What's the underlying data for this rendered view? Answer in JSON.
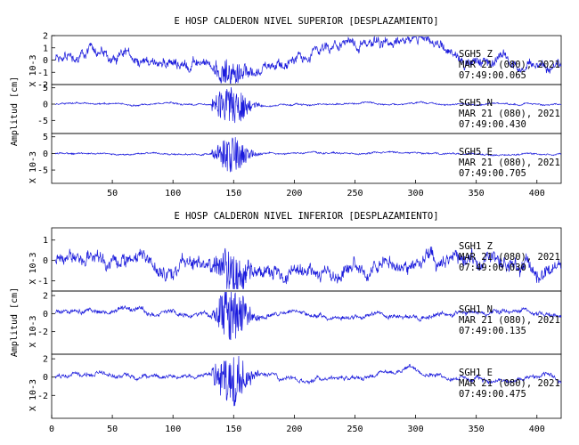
{
  "chart_data": [
    {
      "type": "line",
      "title": "E HOSP CALDERON NIVEL SUPERIOR [DESPLAZAMIENTO]",
      "ylabel": "Amplitud [cm]",
      "xlim": [
        0,
        420
      ],
      "xticks": [
        "50",
        "100",
        "150",
        "200",
        "250",
        "300",
        "350",
        "400"
      ],
      "channels": [
        {
          "name": "SGH5 Z",
          "date": "MAR 21 (080), 2021",
          "time": "07:49:00.065",
          "scale_label": "X 10-3",
          "ylim": [
            -2,
            2
          ],
          "yticks": [
            "2",
            "1",
            "0",
            "-1",
            "-2"
          ],
          "trace": {
            "base_amp": 0.55,
            "burst_amp": 0.9,
            "drift": 0.9
          }
        },
        {
          "name": "SGH5 N",
          "date": "MAR 21 (080), 2021",
          "time": "07:49:00.430",
          "scale_label": "",
          "ylim": [
            -9,
            6
          ],
          "yticks": [
            "5",
            "0",
            "-5"
          ],
          "trace": {
            "base_amp": 0.35,
            "burst_amp": 7.0,
            "drift": 0.2
          }
        },
        {
          "name": "SGH5 E",
          "date": "MAR 21 (080), 2021",
          "time": "07:49:00.705",
          "scale_label": "X 10-3",
          "ylim": [
            -9,
            6
          ],
          "yticks": [
            "5",
            "0",
            "-5"
          ],
          "trace": {
            "base_amp": 0.35,
            "burst_amp": 5.5,
            "drift": 0.15
          }
        }
      ]
    },
    {
      "type": "line",
      "title": "E HOSP CALDERON NIVEL INFERIOR [DESPLAZAMIENTO]",
      "ylabel": "Amplitud [cm]",
      "xlim": [
        0,
        420
      ],
      "xticks": [
        "0",
        "50",
        "100",
        "150",
        "200",
        "250",
        "300",
        "350",
        "400"
      ],
      "channels": [
        {
          "name": "SGH1 Z",
          "date": "MAR 21 (080), 2021",
          "time": "07:49:00.030",
          "scale_label": "X 10-3",
          "ylim": [
            -1.5,
            1.6
          ],
          "yticks": [
            "1",
            "0",
            "-1"
          ],
          "trace": {
            "base_amp": 0.5,
            "burst_amp": 1.2,
            "drift": 0.3
          }
        },
        {
          "name": "SGH1 N",
          "date": "MAR 21 (080), 2021",
          "time": "07:49:00.135",
          "scale_label": "X 10-3",
          "ylim": [
            -4.5,
            2.5
          ],
          "yticks": [
            "2",
            "0",
            "-2"
          ],
          "trace": {
            "base_amp": 0.35,
            "burst_amp": 3.0,
            "drift": 0.4
          }
        },
        {
          "name": "SGH1 E",
          "date": "MAR 21 (080), 2021",
          "time": "07:49:00.475",
          "scale_label": "X 10-3",
          "ylim": [
            -4.5,
            2.5
          ],
          "yticks": [
            "2",
            "0",
            "-2"
          ],
          "trace": {
            "base_amp": 0.3,
            "burst_amp": 3.0,
            "drift": 0.5
          }
        }
      ]
    }
  ],
  "colors": {
    "trace": "#1a1adc",
    "frame": "#000000"
  }
}
